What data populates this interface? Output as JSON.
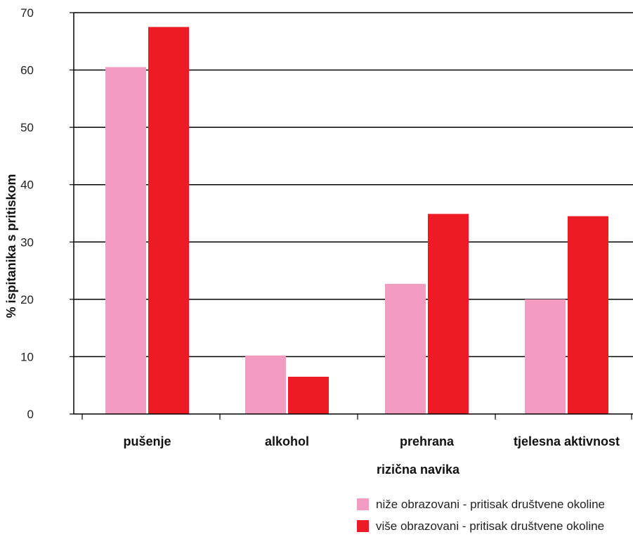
{
  "chart_data": {
    "type": "bar",
    "categories": [
      "pušenje",
      "alkohol",
      "prehrana",
      "tjelesna aktivnost"
    ],
    "series": [
      {
        "name": "niže obrazovani - pritisak društvene okoline",
        "color": "#f39bc0",
        "values": [
          60.5,
          10.2,
          22.7,
          20.0
        ]
      },
      {
        "name": "više obrazovani - pritisak društvene okoline",
        "color": "#ed1c24",
        "values": [
          67.5,
          6.5,
          34.9,
          34.5
        ]
      }
    ],
    "xlabel": "rizična navika",
    "ylabel": "% ispitanika s pritiskom",
    "ylim": [
      0,
      70
    ],
    "yticks": [
      0,
      10,
      20,
      30,
      40,
      50,
      60,
      70
    ],
    "grid": true,
    "legend_position": "bottom-right"
  }
}
